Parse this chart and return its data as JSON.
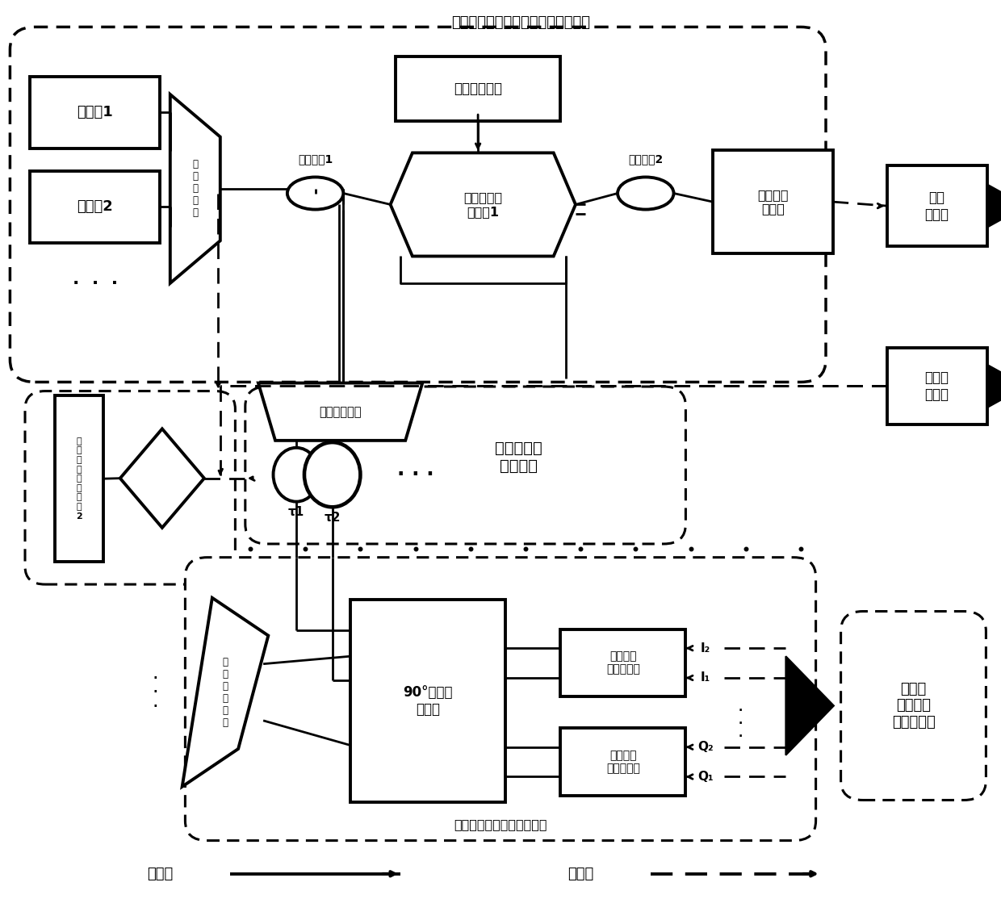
{
  "bg": "#ffffff",
  "top_module_title": "探测信号与多路光参考信号产生模块",
  "delay_module_title": "光参考信号\n延时模块",
  "process_module_title": "光域回波正交去斜处理模块",
  "multichan_title": "多通道\n数字接收\n与处理模块",
  "legend_opt": "光通路",
  "legend_elec": "电通路",
  "laser1": "激光器1",
  "laser2": "激光器2",
  "wdm_mux": "波\n分\n复\n用\n器",
  "coupler1": "光耦合器1",
  "mzm1": "马赫曾德尔\n调制器1",
  "lf_src": "低频电信号源",
  "coupler2": "光耦合器2",
  "hspd": "高速光电\n探测器",
  "pa": "功率\n放大器",
  "lna": "低噪声\n放大器",
  "wdm_demux_delay": "波分解复用器",
  "tau1": "τ1",
  "tau2": "τ2",
  "mzm2": "马\n赫\n曾\n德\n尔\n调\n制\n器\n2",
  "wdm_demux2": "波\n分\n解\n复\n用\n器",
  "hybrid90": "90°光混合\n耦合器",
  "bpd1": "低速平衡\n光电探测器",
  "bpd2": "低速平衡\n光电探测器",
  "I1": "I₁",
  "I2": "I₂",
  "Q1": "Q₁",
  "Q2": "Q₂"
}
